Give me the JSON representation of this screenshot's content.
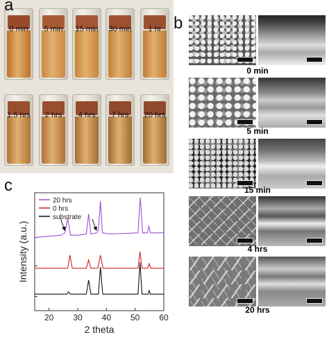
{
  "panel_labels": {
    "a": "a",
    "b": "b",
    "c": "c"
  },
  "cuvettes": [
    {
      "label": "0 min",
      "cap": "#9a4a2c",
      "liquid": "#c07028"
    },
    {
      "label": "5 min",
      "cap": "#a85a36",
      "liquid": "#cc8a40"
    },
    {
      "label": "15 min",
      "cap": "#a35535",
      "liquid": "#c98638"
    },
    {
      "label": "30 min",
      "cap": "#9e5232",
      "liquid": "#c28034"
    },
    {
      "label": "1 hr",
      "cap": "#9a5030",
      "liquid": "#bf7c34"
    },
    {
      "label": "1.5 hrs",
      "cap": "#9a4f30",
      "liquid": "#b27434"
    },
    {
      "label": "2 hrs",
      "cap": "#9a4e30",
      "liquid": "#b07236"
    },
    {
      "label": "4 hrs",
      "cap": "#944a2e",
      "liquid": "#a46c34"
    },
    {
      "label": "7 hrs",
      "cap": "#904a2e",
      "liquid": "#a06a34"
    },
    {
      "label": "20 hrs",
      "cap": "#8e4a2e",
      "liquid": "#a06a36"
    }
  ],
  "sem_rows": [
    {
      "label": "0 min"
    },
    {
      "label": "5 min"
    },
    {
      "label": "15 min"
    },
    {
      "label": "4 hrs"
    },
    {
      "label": "20 hrs"
    }
  ],
  "chart_data": {
    "type": "line",
    "xlabel": "2 theta",
    "ylabel": "Intensity (a.u.)",
    "xlim": [
      15,
      60
    ],
    "xticks": [
      20,
      30,
      40,
      50,
      60
    ],
    "legend": "top-left",
    "series": [
      {
        "name": "20 hrs",
        "color": "#9b4fd6",
        "x": [
          15,
          24,
          25.5,
          26.5,
          27.5,
          30,
          33,
          33.8,
          34.6,
          36.5,
          37.2,
          37.9,
          38.6,
          41,
          51,
          51.8,
          52.6,
          54.3,
          54.8,
          55.3,
          60
        ],
        "y": [
          0.62,
          0.64,
          0.66,
          0.78,
          0.64,
          0.64,
          0.65,
          0.82,
          0.65,
          0.66,
          0.68,
          0.93,
          0.66,
          0.65,
          0.66,
          0.96,
          0.66,
          0.66,
          0.72,
          0.66,
          0.66
        ]
      },
      {
        "name": "0 hrs",
        "color": "#d42020",
        "x": [
          15,
          26.5,
          27.3,
          28.1,
          30,
          33,
          33.8,
          34.6,
          37,
          37.9,
          38.8,
          42,
          51,
          51.7,
          52.4,
          54.4,
          54.9,
          55.4,
          60
        ],
        "y": [
          0.36,
          0.36,
          0.47,
          0.36,
          0.36,
          0.36,
          0.43,
          0.36,
          0.36,
          0.47,
          0.36,
          0.36,
          0.36,
          0.5,
          0.36,
          0.36,
          0.4,
          0.36,
          0.36
        ]
      },
      {
        "name": "substrate",
        "color": "#111111",
        "x": [
          15,
          26.2,
          26.8,
          27.4,
          33,
          33.8,
          34.6,
          37.2,
          37.9,
          38.7,
          51,
          51.7,
          52.4,
          54.5,
          54.9,
          55.3,
          60
        ],
        "y": [
          0.14,
          0.14,
          0.16,
          0.14,
          0.14,
          0.26,
          0.14,
          0.14,
          0.37,
          0.14,
          0.14,
          0.41,
          0.14,
          0.14,
          0.17,
          0.14,
          0.14
        ]
      }
    ],
    "arrows": [
      {
        "x": 25.5,
        "target_series": "20 hrs"
      },
      {
        "x": 36.5,
        "target_series": "20 hrs"
      }
    ]
  }
}
